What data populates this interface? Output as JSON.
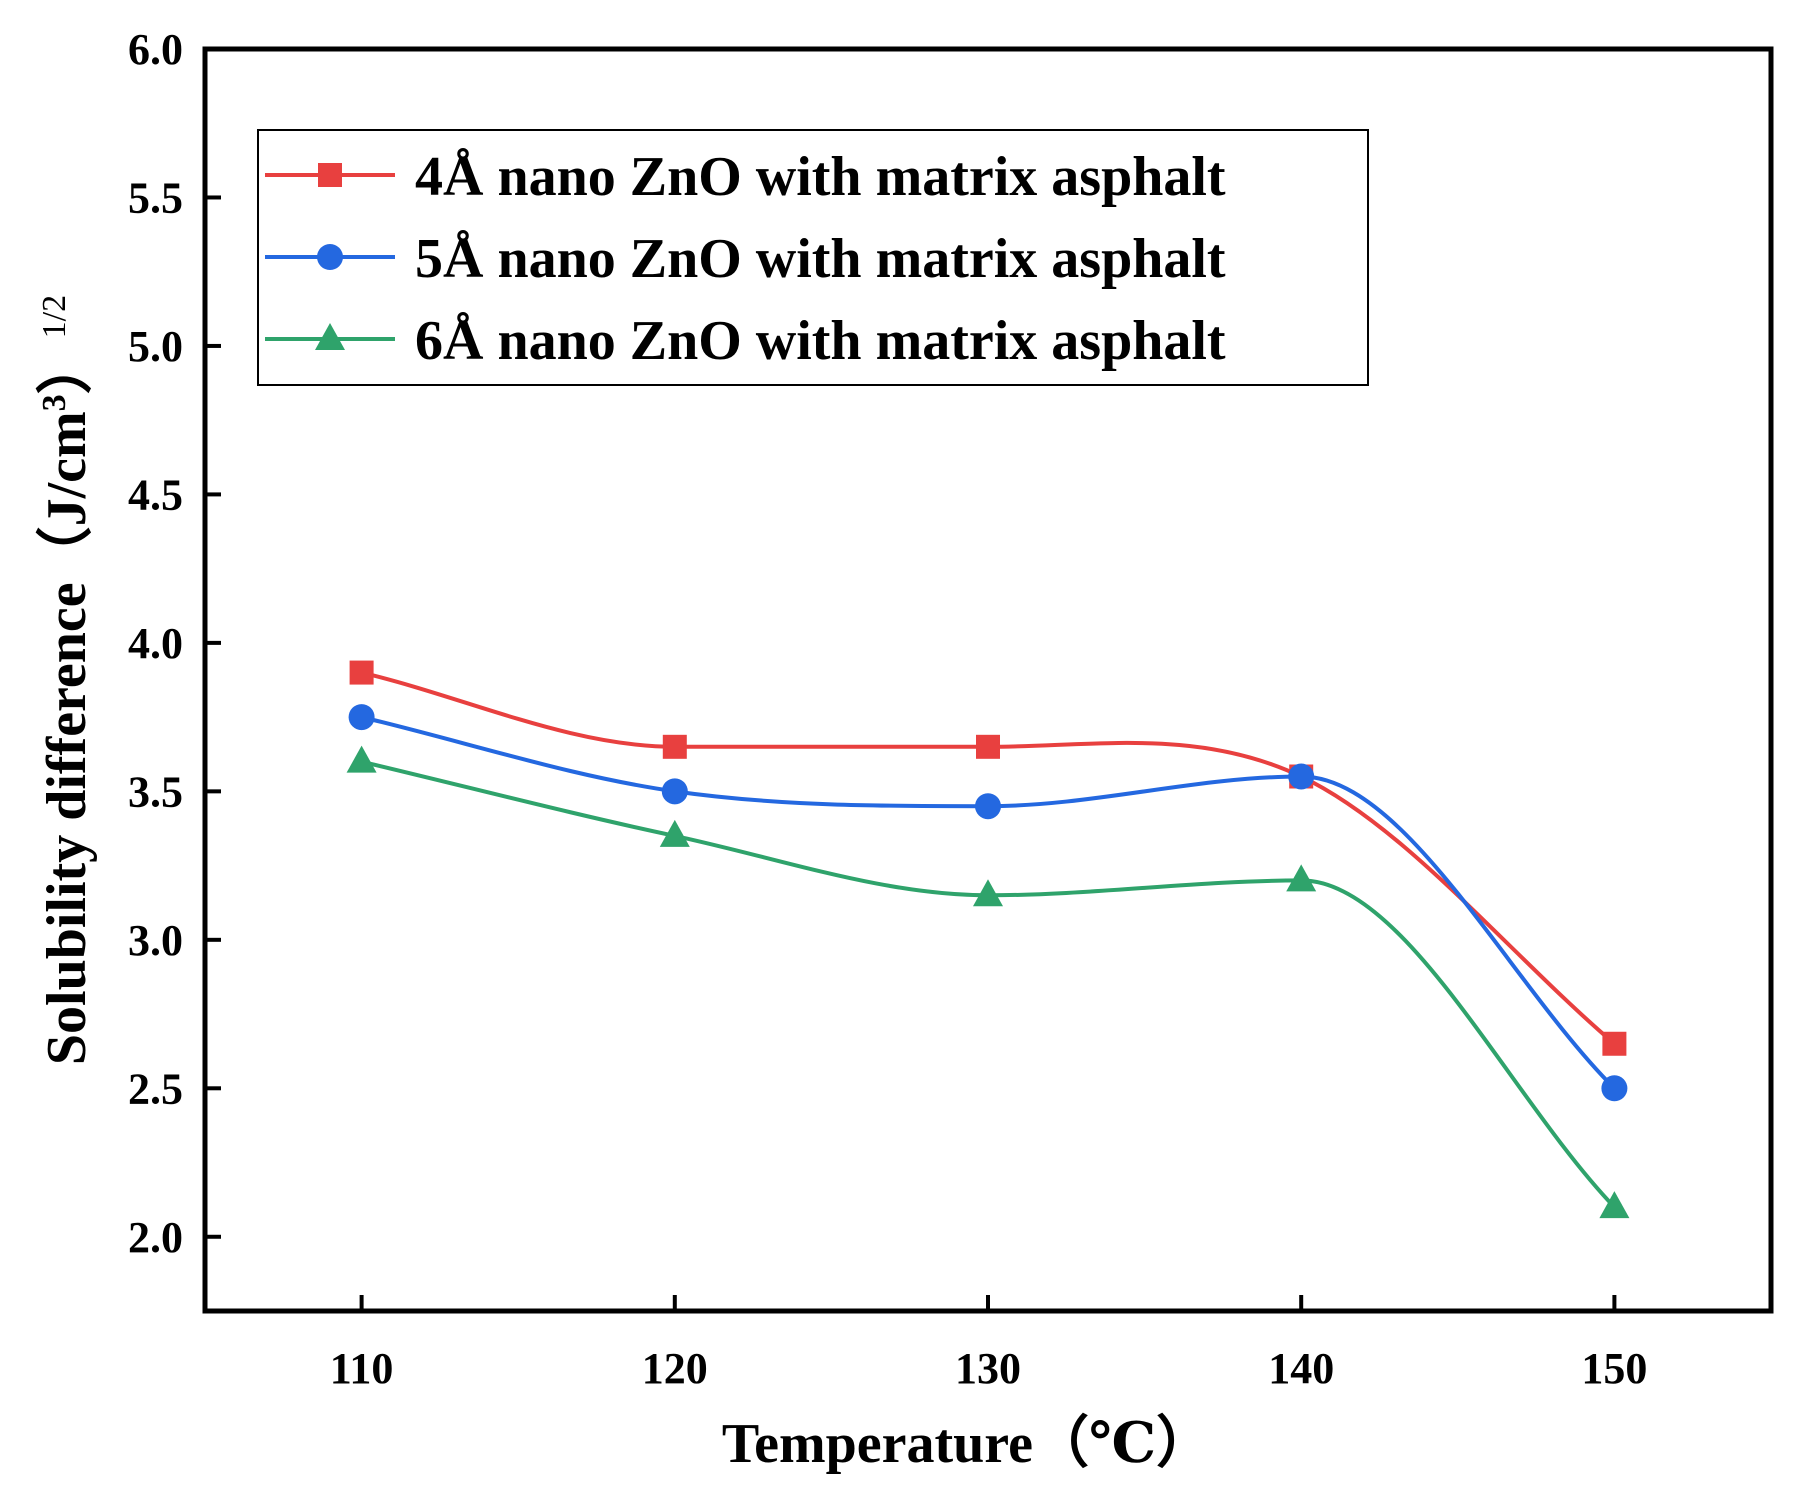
{
  "chart_data": {
    "type": "line",
    "title": "",
    "xlabel": "Temperature（℃）",
    "ylabel": {
      "main": "Solubility difference（J/cm",
      "sup1": "3",
      "close": "）",
      "sup2": "1/2"
    },
    "x": [
      110,
      120,
      130,
      140,
      150
    ],
    "xlim": [
      105,
      155
    ],
    "ylim": [
      1.75,
      6.0
    ],
    "xticks": [
      "110",
      "120",
      "130",
      "140",
      "150"
    ],
    "yticks": [
      "2.0",
      "2.5",
      "3.0",
      "3.5",
      "4.0",
      "4.5",
      "5.0",
      "5.5",
      "6.0"
    ],
    "smooth": true,
    "grid": false,
    "legend_position": "top-left",
    "series": [
      {
        "name": "4Å nano ZnO with matrix asphalt",
        "color": "#e8403f",
        "marker": "square",
        "values": [
          3.9,
          3.65,
          3.65,
          3.55,
          2.65
        ]
      },
      {
        "name": "5Å nano ZnO with matrix asphalt",
        "color": "#2468e0",
        "marker": "circle",
        "values": [
          3.75,
          3.5,
          3.45,
          3.55,
          2.5
        ]
      },
      {
        "name": "6Å nano ZnO with matrix asphalt",
        "color": "#2fa36b",
        "marker": "triangle",
        "values": [
          3.6,
          3.35,
          3.15,
          3.2,
          2.1
        ]
      }
    ]
  }
}
